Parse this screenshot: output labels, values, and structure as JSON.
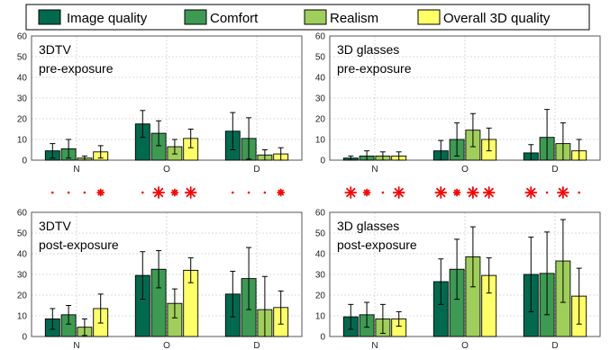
{
  "legend": {
    "entries": [
      {
        "label": "Image quality",
        "color": "#006a4e"
      },
      {
        "label": "Comfort",
        "color": "#3d9a52"
      },
      {
        "label": "Realism",
        "color": "#9fcf5a"
      },
      {
        "label": "Overall 3D quality",
        "color": "#ffff66"
      }
    ]
  },
  "chart_data": [
    {
      "type": "bar",
      "title_lines": [
        "3DTV",
        "pre-exposure"
      ],
      "categories": [
        "N",
        "O",
        "D"
      ],
      "ylim": [
        0,
        60
      ],
      "yticks": [
        0,
        10,
        20,
        30,
        40,
        50,
        60
      ],
      "grid": true,
      "series": [
        {
          "name": "Image quality",
          "values": [
            4.5,
            17.5,
            14
          ],
          "errors": [
            3.5,
            6.5,
            9
          ]
        },
        {
          "name": "Comfort",
          "values": [
            5.5,
            13,
            10.5
          ],
          "errors": [
            4.5,
            6,
            10
          ]
        },
        {
          "name": "Realism",
          "values": [
            1,
            6.5,
            2.5
          ],
          "errors": [
            1,
            3.5,
            2.5
          ]
        },
        {
          "name": "Overall 3D quality",
          "values": [
            4,
            10.5,
            3
          ],
          "errors": [
            3,
            4.5,
            3
          ]
        }
      ]
    },
    {
      "type": "bar",
      "title_lines": [
        "3D glasses",
        "pre-exposure"
      ],
      "categories": [
        "N",
        "O",
        "D"
      ],
      "ylim": [
        0,
        60
      ],
      "yticks": [
        0,
        10,
        20,
        30,
        40,
        50,
        60
      ],
      "grid": true,
      "series": [
        {
          "name": "Image quality",
          "values": [
            1,
            4.5,
            3.5
          ],
          "errors": [
            1,
            5,
            4
          ]
        },
        {
          "name": "Comfort",
          "values": [
            2,
            10,
            11
          ],
          "errors": [
            2.5,
            8,
            13.5
          ]
        },
        {
          "name": "Realism",
          "values": [
            2,
            14.5,
            8
          ],
          "errors": [
            2,
            8,
            10
          ]
        },
        {
          "name": "Overall 3D quality",
          "values": [
            2,
            10,
            4.5
          ],
          "errors": [
            2,
            5.5,
            5.5
          ]
        }
      ]
    },
    {
      "type": "bar",
      "title_lines": [
        "3DTV",
        "post-exposure"
      ],
      "categories": [
        "N",
        "O",
        "D"
      ],
      "ylim": [
        0,
        60
      ],
      "yticks": [
        0,
        10,
        20,
        30,
        40,
        50,
        60
      ],
      "grid": true,
      "series": [
        {
          "name": "Image quality",
          "values": [
            8.5,
            29.5,
            20.5
          ],
          "errors": [
            5,
            11.5,
            11
          ]
        },
        {
          "name": "Comfort",
          "values": [
            10.5,
            32.5,
            28
          ],
          "errors": [
            4.5,
            9,
            15
          ]
        },
        {
          "name": "Realism",
          "values": [
            4.5,
            16,
            13
          ],
          "errors": [
            4,
            7,
            16
          ]
        },
        {
          "name": "Overall 3D quality",
          "values": [
            13.5,
            32,
            14
          ],
          "errors": [
            7,
            6,
            8
          ]
        }
      ]
    },
    {
      "type": "bar",
      "title_lines": [
        "3D glasses",
        "post-exposure"
      ],
      "categories": [
        "N",
        "O",
        "D"
      ],
      "ylim": [
        0,
        60
      ],
      "yticks": [
        0,
        10,
        20,
        30,
        40,
        50,
        60
      ],
      "grid": true,
      "series": [
        {
          "name": "Image quality",
          "values": [
            9.5,
            26.5,
            30
          ],
          "errors": [
            6,
            11,
            18
          ]
        },
        {
          "name": "Comfort",
          "values": [
            10.5,
            32.5,
            30.5
          ],
          "errors": [
            6,
            14.5,
            20
          ]
        },
        {
          "name": "Realism",
          "values": [
            8.5,
            38.5,
            36.5
          ],
          "errors": [
            7,
            14.5,
            20
          ]
        },
        {
          "name": "Overall 3D quality",
          "values": [
            8.5,
            29.5,
            19.5
          ],
          "errors": [
            3.5,
            8.5,
            13.5
          ]
        }
      ]
    }
  ],
  "significance_rows": [
    {
      "marker_color": "#ff0000",
      "groups": [
        {
          "category": "N",
          "marks": [
            "dot",
            "dot",
            "dot",
            "star-small"
          ]
        },
        {
          "category": "O",
          "marks": [
            "dot",
            "star-large",
            "star-small",
            "star-large"
          ]
        },
        {
          "category": "D",
          "marks": [
            "dot",
            "dot",
            "dot",
            "star-small"
          ]
        }
      ]
    },
    {
      "marker_color": "#ff0000",
      "groups": [
        {
          "category": "N",
          "marks": [
            "star-large",
            "star-small",
            "dot",
            "star-large"
          ]
        },
        {
          "category": "O",
          "marks": [
            "star-large",
            "star-small",
            "star-large",
            "star-large"
          ]
        },
        {
          "category": "D",
          "marks": [
            "star-large",
            "dot",
            "star-large",
            "dot"
          ]
        }
      ]
    }
  ]
}
